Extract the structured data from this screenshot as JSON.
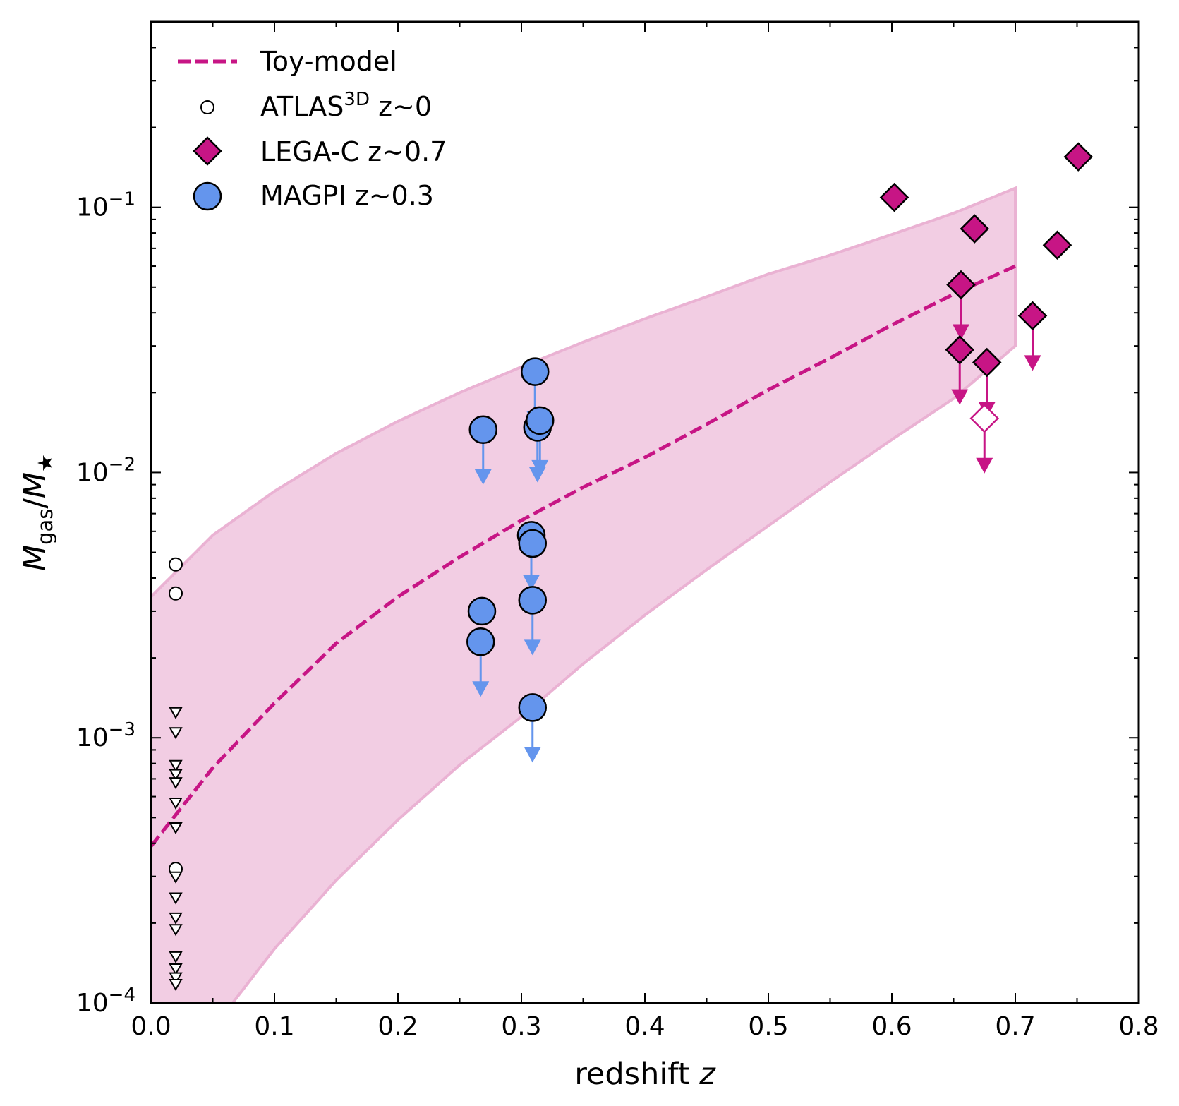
{
  "chart_data": {
    "type": "scatter",
    "title": "",
    "xlabel": "redshift",
    "xlabel_var": "z",
    "ylabel": "M_gas/M_★",
    "xlim": [
      0.0,
      0.8
    ],
    "ylim": [
      0.0001,
      0.5
    ],
    "yscale": "log",
    "grid": false,
    "legend_position": "top-left",
    "x_ticks": [
      "0.0",
      "0.1",
      "0.2",
      "0.3",
      "0.4",
      "0.5",
      "0.6",
      "0.7",
      "0.8"
    ],
    "y_ticks": [
      {
        "base": "10",
        "exp": "−4",
        "value": 0.0001
      },
      {
        "base": "10",
        "exp": "−3",
        "value": 0.001
      },
      {
        "base": "10",
        "exp": "−2",
        "value": 0.01
      },
      {
        "base": "10",
        "exp": "−1",
        "value": 0.1
      }
    ],
    "colors": {
      "toy_model": "#c71585",
      "band_fill": "#f2cde3",
      "band_edge": "#eab2d3",
      "lega_c": "#c71585",
      "magpi": "#6495ed",
      "magpi_arrow": "#6495ed",
      "atlas": "#000000"
    },
    "legend": {
      "toy_model": "Toy-model",
      "atlas_main": "ATLAS",
      "atlas_sup": "3D",
      "atlas_rest": " z~0",
      "lega_c": "LEGA-C z~0.7",
      "magpi": "MAGPI z~0.3"
    },
    "series": [
      {
        "name": "Toy-model",
        "kind": "dashed-line",
        "x": [
          0.0,
          0.05,
          0.1,
          0.15,
          0.2,
          0.25,
          0.3,
          0.35,
          0.4,
          0.45,
          0.5,
          0.55,
          0.6,
          0.65,
          0.7
        ],
        "y": [
          0.00039,
          0.00077,
          0.00135,
          0.00227,
          0.0034,
          0.0048,
          0.0066,
          0.0088,
          0.0114,
          0.0152,
          0.0205,
          0.027,
          0.036,
          0.047,
          0.06
        ]
      },
      {
        "name": "Toy-model band",
        "kind": "band",
        "x": [
          0.0,
          0.05,
          0.1,
          0.15,
          0.2,
          0.25,
          0.3,
          0.35,
          0.4,
          0.45,
          0.5,
          0.55,
          0.6,
          0.65,
          0.7
        ],
        "upper": [
          0.0034,
          0.0058,
          0.0085,
          0.0118,
          0.0156,
          0.02,
          0.025,
          0.031,
          0.038,
          0.046,
          0.056,
          0.066,
          0.079,
          0.095,
          0.118
        ],
        "lower": [
          6e-05,
          8e-05,
          0.00016,
          0.00029,
          0.00049,
          0.00079,
          0.0012,
          0.0019,
          0.0029,
          0.0043,
          0.0063,
          0.0092,
          0.0133,
          0.019,
          0.03
        ]
      },
      {
        "name": "ATLAS3D z~0",
        "kind": "atlas",
        "detections": [
          {
            "x": 0.02,
            "y": 0.0045
          },
          {
            "x": 0.02,
            "y": 0.0035
          },
          {
            "x": 0.02,
            "y": 0.00032
          }
        ],
        "upper_limits": [
          {
            "x": 0.02,
            "y": 0.00125
          },
          {
            "x": 0.02,
            "y": 0.00105
          },
          {
            "x": 0.02,
            "y": 0.00079
          },
          {
            "x": 0.02,
            "y": 0.00073
          },
          {
            "x": 0.02,
            "y": 0.00068
          },
          {
            "x": 0.02,
            "y": 0.00057
          },
          {
            "x": 0.02,
            "y": 0.00046
          },
          {
            "x": 0.02,
            "y": 0.0003
          },
          {
            "x": 0.02,
            "y": 0.00025
          },
          {
            "x": 0.02,
            "y": 0.00021
          },
          {
            "x": 0.02,
            "y": 0.00019
          },
          {
            "x": 0.02,
            "y": 0.00015
          },
          {
            "x": 0.02,
            "y": 0.000135
          },
          {
            "x": 0.02,
            "y": 0.000125
          },
          {
            "x": 0.02,
            "y": 0.000118
          }
        ]
      },
      {
        "name": "LEGA-C z~0.7",
        "kind": "diamond",
        "points": [
          {
            "x": 0.602,
            "y": 0.109,
            "limit": false,
            "open": false
          },
          {
            "x": 0.667,
            "y": 0.083,
            "limit": false,
            "open": false
          },
          {
            "x": 0.751,
            "y": 0.155,
            "limit": false,
            "open": false
          },
          {
            "x": 0.734,
            "y": 0.072,
            "limit": false,
            "open": false
          },
          {
            "x": 0.656,
            "y": 0.051,
            "limit": true,
            "open": false
          },
          {
            "x": 0.714,
            "y": 0.039,
            "limit": true,
            "open": false
          },
          {
            "x": 0.655,
            "y": 0.029,
            "limit": true,
            "open": false
          },
          {
            "x": 0.677,
            "y": 0.026,
            "limit": true,
            "open": false
          },
          {
            "x": 0.675,
            "y": 0.016,
            "limit": true,
            "open": true
          }
        ]
      },
      {
        "name": "MAGPI z~0.3",
        "kind": "circle",
        "points": [
          {
            "x": 0.311,
            "y": 0.024,
            "limit": true
          },
          {
            "x": 0.269,
            "y": 0.0145,
            "limit": true
          },
          {
            "x": 0.313,
            "y": 0.0148,
            "limit": true
          },
          {
            "x": 0.315,
            "y": 0.0157,
            "limit": true
          },
          {
            "x": 0.308,
            "y": 0.0058,
            "limit": true
          },
          {
            "x": 0.309,
            "y": 0.0054,
            "limit": false
          },
          {
            "x": 0.268,
            "y": 0.003,
            "limit": false
          },
          {
            "x": 0.267,
            "y": 0.0023,
            "limit": true
          },
          {
            "x": 0.309,
            "y": 0.0033,
            "limit": true
          },
          {
            "x": 0.309,
            "y": 0.0013,
            "limit": true
          }
        ]
      }
    ]
  }
}
